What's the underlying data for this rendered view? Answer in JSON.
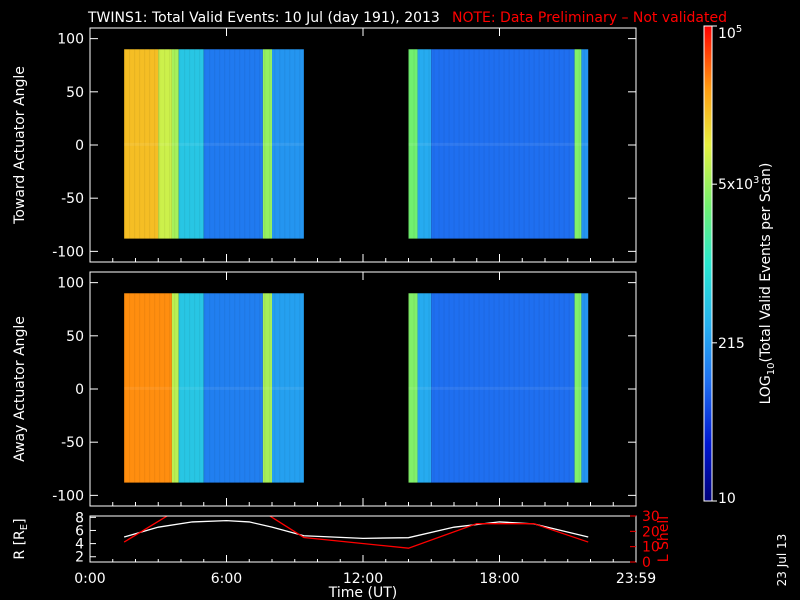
{
  "header": {
    "title": "TWINS1: Total Valid Events: 10 Jul (day 191), 2013",
    "note": "NOTE: Data Preliminary – Not validated"
  },
  "footer": {
    "date_stamp": "23 Jul 13"
  },
  "colors": {
    "background": "#000000",
    "foreground": "#ffffff",
    "accent": "#ff0000"
  },
  "chart_data": [
    {
      "type": "heatmap",
      "ylabel": "Toward Actuator Angle",
      "x_unit": "hours UT",
      "xlim": [
        0,
        24
      ],
      "ylim": [
        -110,
        110
      ],
      "yticks": [
        -100,
        -50,
        0,
        50,
        100
      ],
      "data_extent_y": [
        -88,
        90
      ],
      "data_blocks": [
        {
          "x_start": 1.5,
          "x_end": 9.4,
          "columns": [
            {
              "x0": 1.5,
              "x1": 3.0,
              "level": 0.82
            },
            {
              "x0": 3.0,
              "x1": 3.6,
              "level": 0.72
            },
            {
              "x0": 3.6,
              "x1": 3.9,
              "level": 0.68
            },
            {
              "x0": 3.9,
              "x1": 5.0,
              "level": 0.42
            },
            {
              "x0": 5.0,
              "x1": 7.6,
              "level": 0.27
            },
            {
              "x0": 7.6,
              "x1": 8.0,
              "level": 0.66
            },
            {
              "x0": 8.0,
              "x1": 9.4,
              "level": 0.32
            }
          ]
        },
        {
          "x_start": 14.0,
          "x_end": 21.9,
          "columns": [
            {
              "x0": 14.0,
              "x1": 14.4,
              "level": 0.62
            },
            {
              "x0": 14.4,
              "x1": 15.0,
              "level": 0.36
            },
            {
              "x0": 15.0,
              "x1": 21.3,
              "level": 0.25
            },
            {
              "x0": 21.3,
              "x1": 21.6,
              "level": 0.64
            },
            {
              "x0": 21.6,
              "x1": 21.9,
              "level": 0.32
            }
          ]
        }
      ]
    },
    {
      "type": "heatmap",
      "ylabel": "Away Actuator Angle",
      "x_unit": "hours UT",
      "xlim": [
        0,
        24
      ],
      "ylim": [
        -110,
        110
      ],
      "yticks": [
        -100,
        -50,
        0,
        50,
        100
      ],
      "data_extent_y": [
        -88,
        90
      ],
      "data_blocks": [
        {
          "x_start": 1.5,
          "x_end": 9.4,
          "columns": [
            {
              "x0": 1.5,
              "x1": 3.6,
              "level": 0.88
            },
            {
              "x0": 3.6,
              "x1": 3.9,
              "level": 0.7
            },
            {
              "x0": 3.9,
              "x1": 5.0,
              "level": 0.42
            },
            {
              "x0": 5.0,
              "x1": 7.6,
              "level": 0.28
            },
            {
              "x0": 7.6,
              "x1": 8.0,
              "level": 0.68
            },
            {
              "x0": 8.0,
              "x1": 9.4,
              "level": 0.34
            }
          ]
        },
        {
          "x_start": 14.0,
          "x_end": 21.9,
          "columns": [
            {
              "x0": 14.0,
              "x1": 14.4,
              "level": 0.64
            },
            {
              "x0": 14.4,
              "x1": 15.0,
              "level": 0.36
            },
            {
              "x0": 15.0,
              "x1": 21.3,
              "level": 0.25
            },
            {
              "x0": 21.3,
              "x1": 21.6,
              "level": 0.64
            },
            {
              "x0": 21.6,
              "x1": 21.9,
              "level": 0.32
            }
          ]
        }
      ]
    },
    {
      "type": "line",
      "xlabel": "Time (UT)",
      "xticks": [
        "0:00",
        "6:00",
        "12:00",
        "18:00",
        "23:59"
      ],
      "xtick_hours": [
        0,
        6,
        12,
        18,
        24
      ],
      "xlim": [
        0,
        24
      ],
      "ylabel_left": "R [RE]",
      "ylabel_left_main": "R [R",
      "ylabel_left_sub": "E",
      "ylabel_left_end": "]",
      "ylim_left": [
        1.2,
        8.2
      ],
      "yticks_left": [
        2,
        4,
        6,
        8
      ],
      "ylabel_right": "L Shell",
      "ylim_right": [
        0,
        30
      ],
      "yticks_right": [
        0,
        10,
        20,
        30
      ],
      "series": [
        {
          "name": "R [RE]",
          "axis": "left",
          "color": "#ffffff",
          "x": [
            1.5,
            3,
            4.5,
            6,
            7,
            8,
            9.4,
            12,
            14,
            16,
            18,
            19.5,
            21.9
          ],
          "y": [
            5.0,
            6.5,
            7.3,
            7.5,
            7.3,
            6.5,
            5.2,
            4.8,
            4.9,
            6.5,
            7.3,
            7.0,
            5.0
          ]
        },
        {
          "name": "L Shell",
          "axis": "right",
          "color": "#ff0000",
          "x": [
            1.5,
            3.5,
            7.8,
            9.4,
            14,
            17,
            19.5,
            21.9
          ],
          "y": [
            13,
            31,
            31,
            16,
            9,
            25,
            25,
            13
          ]
        }
      ]
    },
    {
      "type": "colorbar",
      "label": "LOG10(Total Valid Events per Scan)",
      "label_main": "LOG",
      "label_sub": "10",
      "label_end": "(Total Valid Events per Scan)",
      "ticks": [
        {
          "label": "10",
          "level": 0
        },
        {
          "label": "215",
          "level": 0.333
        },
        {
          "label": "5x10",
          "sup": "3",
          "level": 0.667
        },
        {
          "label": "10",
          "sup": "5",
          "level": 1.0
        }
      ]
    }
  ]
}
